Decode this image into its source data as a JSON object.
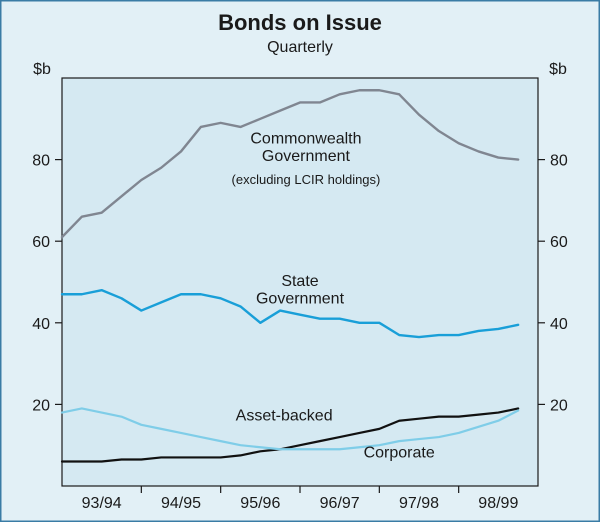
{
  "chart": {
    "type": "line",
    "title": "Bonds on Issue",
    "subtitle": "Quarterly",
    "title_fontsize": 22,
    "subtitle_fontsize": 16,
    "background_color": "#e2f0f6",
    "plot_background_color": "#d5e9f2",
    "frame_color": "#1a1a1a",
    "frame_width": 1.2,
    "outer_border_color": "#3a7ca5",
    "outer_border_width": 1.5,
    "axis": {
      "left_unit": "$b",
      "right_unit": "$b",
      "unit_fontsize": 16,
      "tick_fontsize": 16,
      "tick_color": "#1a1a1a",
      "xlabel_fontsize": 16,
      "ylim": [
        0,
        100
      ],
      "yticks": [
        20,
        40,
        60,
        80
      ],
      "xlim": [
        0,
        24
      ],
      "year_labels": [
        "93/94",
        "94/95",
        "95/96",
        "96/97",
        "97/98",
        "98/99"
      ],
      "year_label_x": [
        2,
        6,
        10,
        14,
        18,
        22
      ],
      "year_divider_x": [
        4,
        8,
        12,
        16,
        20
      ]
    },
    "series": [
      {
        "name": "Commonwealth Government",
        "label": "Commonwealth\nGovernment",
        "sublabel": "(excluding LCIR holdings)",
        "color": "#808691",
        "width": 2.4,
        "label_fontsize": 16,
        "sublabel_fontsize": 13,
        "label_x": 12.3,
        "label_y": 84.0,
        "sublabel_x": 12.3,
        "sublabel_y": 74.0,
        "x": [
          0,
          1,
          2,
          3,
          4,
          5,
          6,
          7,
          8,
          9,
          10,
          11,
          12,
          13,
          14,
          15,
          16,
          17,
          18,
          19,
          20,
          21,
          22,
          23
        ],
        "y": [
          61,
          66,
          67,
          71,
          75,
          78,
          82,
          88,
          89,
          88,
          90,
          92,
          94,
          94,
          96,
          97,
          97,
          96,
          91,
          87,
          84,
          82,
          80.5,
          80
        ]
      },
      {
        "name": "State Government",
        "label": "State\nGovernment",
        "color": "#199fd8",
        "width": 2.4,
        "label_fontsize": 16,
        "label_x": 12.0,
        "label_y": 49.0,
        "x": [
          0,
          1,
          2,
          3,
          4,
          5,
          6,
          7,
          8,
          9,
          10,
          11,
          12,
          13,
          14,
          15,
          16,
          17,
          18,
          19,
          20,
          21,
          22,
          23
        ],
        "y": [
          47,
          47,
          48,
          46,
          43,
          45,
          47,
          47,
          46,
          44,
          40,
          43,
          42,
          41,
          41,
          40,
          40,
          37,
          36.5,
          37,
          37,
          38,
          38.5,
          39.5
        ]
      },
      {
        "name": "Asset-backed",
        "label": "Asset-backed",
        "color": "#111111",
        "width": 2.2,
        "label_fontsize": 16,
        "label_x": 11.2,
        "label_y": 16.0,
        "x": [
          0,
          1,
          2,
          3,
          4,
          5,
          6,
          7,
          8,
          9,
          10,
          11,
          12,
          13,
          14,
          15,
          16,
          17,
          18,
          19,
          20,
          21,
          22,
          23
        ],
        "y": [
          6,
          6,
          6,
          6.5,
          6.5,
          7,
          7,
          7,
          7,
          7.5,
          8.5,
          9,
          10,
          11,
          12,
          13,
          14,
          16,
          16.5,
          17,
          17,
          17.5,
          18,
          19
        ]
      },
      {
        "name": "Corporate",
        "label": "Corporate",
        "color": "#7fcde8",
        "width": 2.2,
        "label_fontsize": 16,
        "label_x": 17.0,
        "label_y": 7.0,
        "x": [
          0,
          1,
          2,
          3,
          4,
          5,
          6,
          7,
          8,
          9,
          10,
          11,
          12,
          13,
          14,
          15,
          16,
          17,
          18,
          19,
          20,
          21,
          22,
          23
        ],
        "y": [
          18,
          19,
          18,
          17,
          15,
          14,
          13,
          12,
          11,
          10,
          9.5,
          9,
          9,
          9,
          9,
          9.5,
          10,
          11,
          11.5,
          12,
          13,
          14.5,
          16,
          18.5
        ]
      }
    ]
  }
}
